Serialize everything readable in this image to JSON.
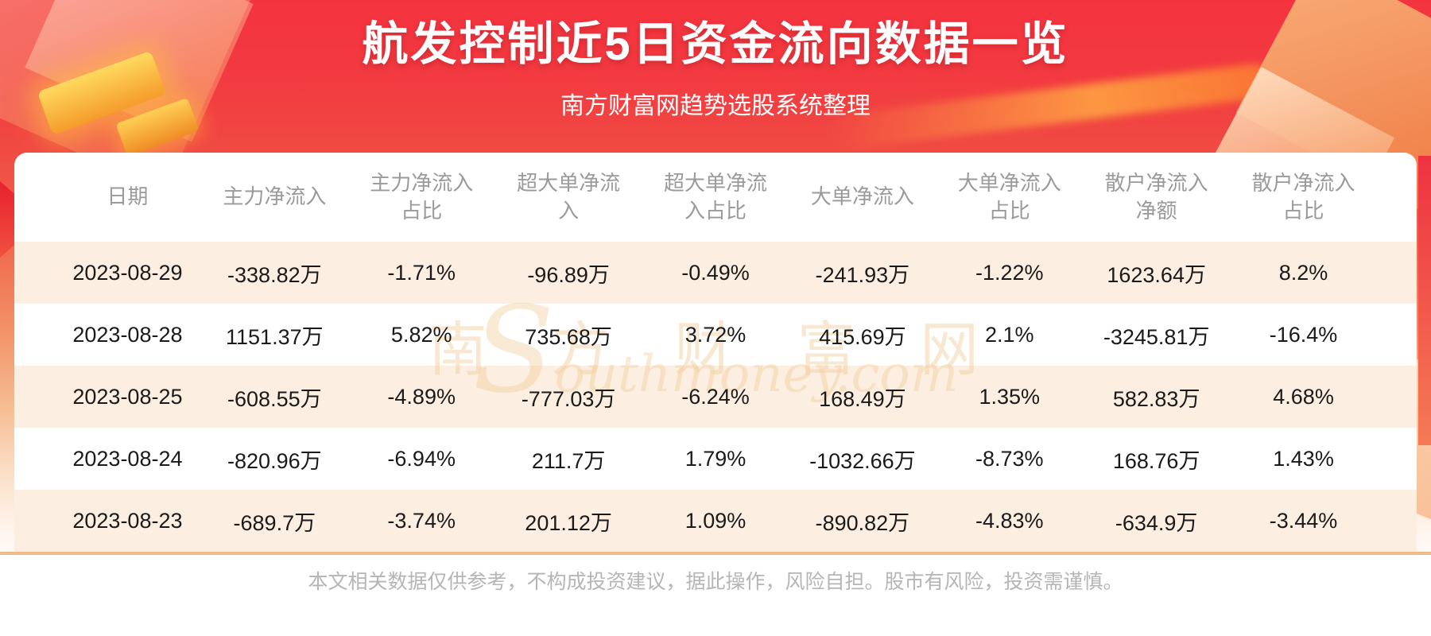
{
  "header": {
    "title": "航发控制近5日资金流向数据一览",
    "subtitle": "南方财富网趋势选股系统整理"
  },
  "chart_data": {
    "type": "table",
    "title": "航发控制近5日资金流向数据一览",
    "subtitle": "南方财富网趋势选股系统整理",
    "columns": [
      "日期",
      "主力净流入",
      "主力净流入\n占比",
      "超大单净流\n入",
      "超大单净流\n入占比",
      "大单净流入",
      "大单净流入\n占比",
      "散户净流入\n净额",
      "散户净流入\n占比"
    ],
    "rows": [
      [
        "2023-08-29",
        "-338.82万",
        "-1.71%",
        "-96.89万",
        "-0.49%",
        "-241.93万",
        "-1.22%",
        "1623.64万",
        "8.2%"
      ],
      [
        "2023-08-28",
        "1151.37万",
        "5.82%",
        "735.68万",
        "3.72%",
        "415.69万",
        "2.1%",
        "-3245.81万",
        "-16.4%"
      ],
      [
        "2023-08-25",
        "-608.55万",
        "-4.89%",
        "-777.03万",
        "-6.24%",
        "168.49万",
        "1.35%",
        "582.83万",
        "4.68%"
      ],
      [
        "2023-08-24",
        "-820.96万",
        "-6.94%",
        "211.7万",
        "1.79%",
        "-1032.66万",
        "-8.73%",
        "168.76万",
        "1.43%"
      ],
      [
        "2023-08-23",
        "-689.7万",
        "-3.74%",
        "201.12万",
        "1.09%",
        "-890.82万",
        "-4.83%",
        "-634.9万",
        "-3.44%"
      ]
    ]
  },
  "watermark": {
    "line1": "南 方 财 富 网",
    "line2": "Southmoney.com"
  },
  "footer": {
    "disclaimer": "本文相关数据仅供参考，不构成投资建议，据此操作，风险自担。股市有风险，投资需谨慎。"
  },
  "colors": {
    "banner_red": "#f4333f",
    "gold_accent": "#ffd95e",
    "row_stripe": "#fcf0e6",
    "divider_tan": "#f1bb86",
    "header_text": "#9a9a9a",
    "data_text": "#1a1a1a",
    "footer_text": "#b5b5b5"
  }
}
